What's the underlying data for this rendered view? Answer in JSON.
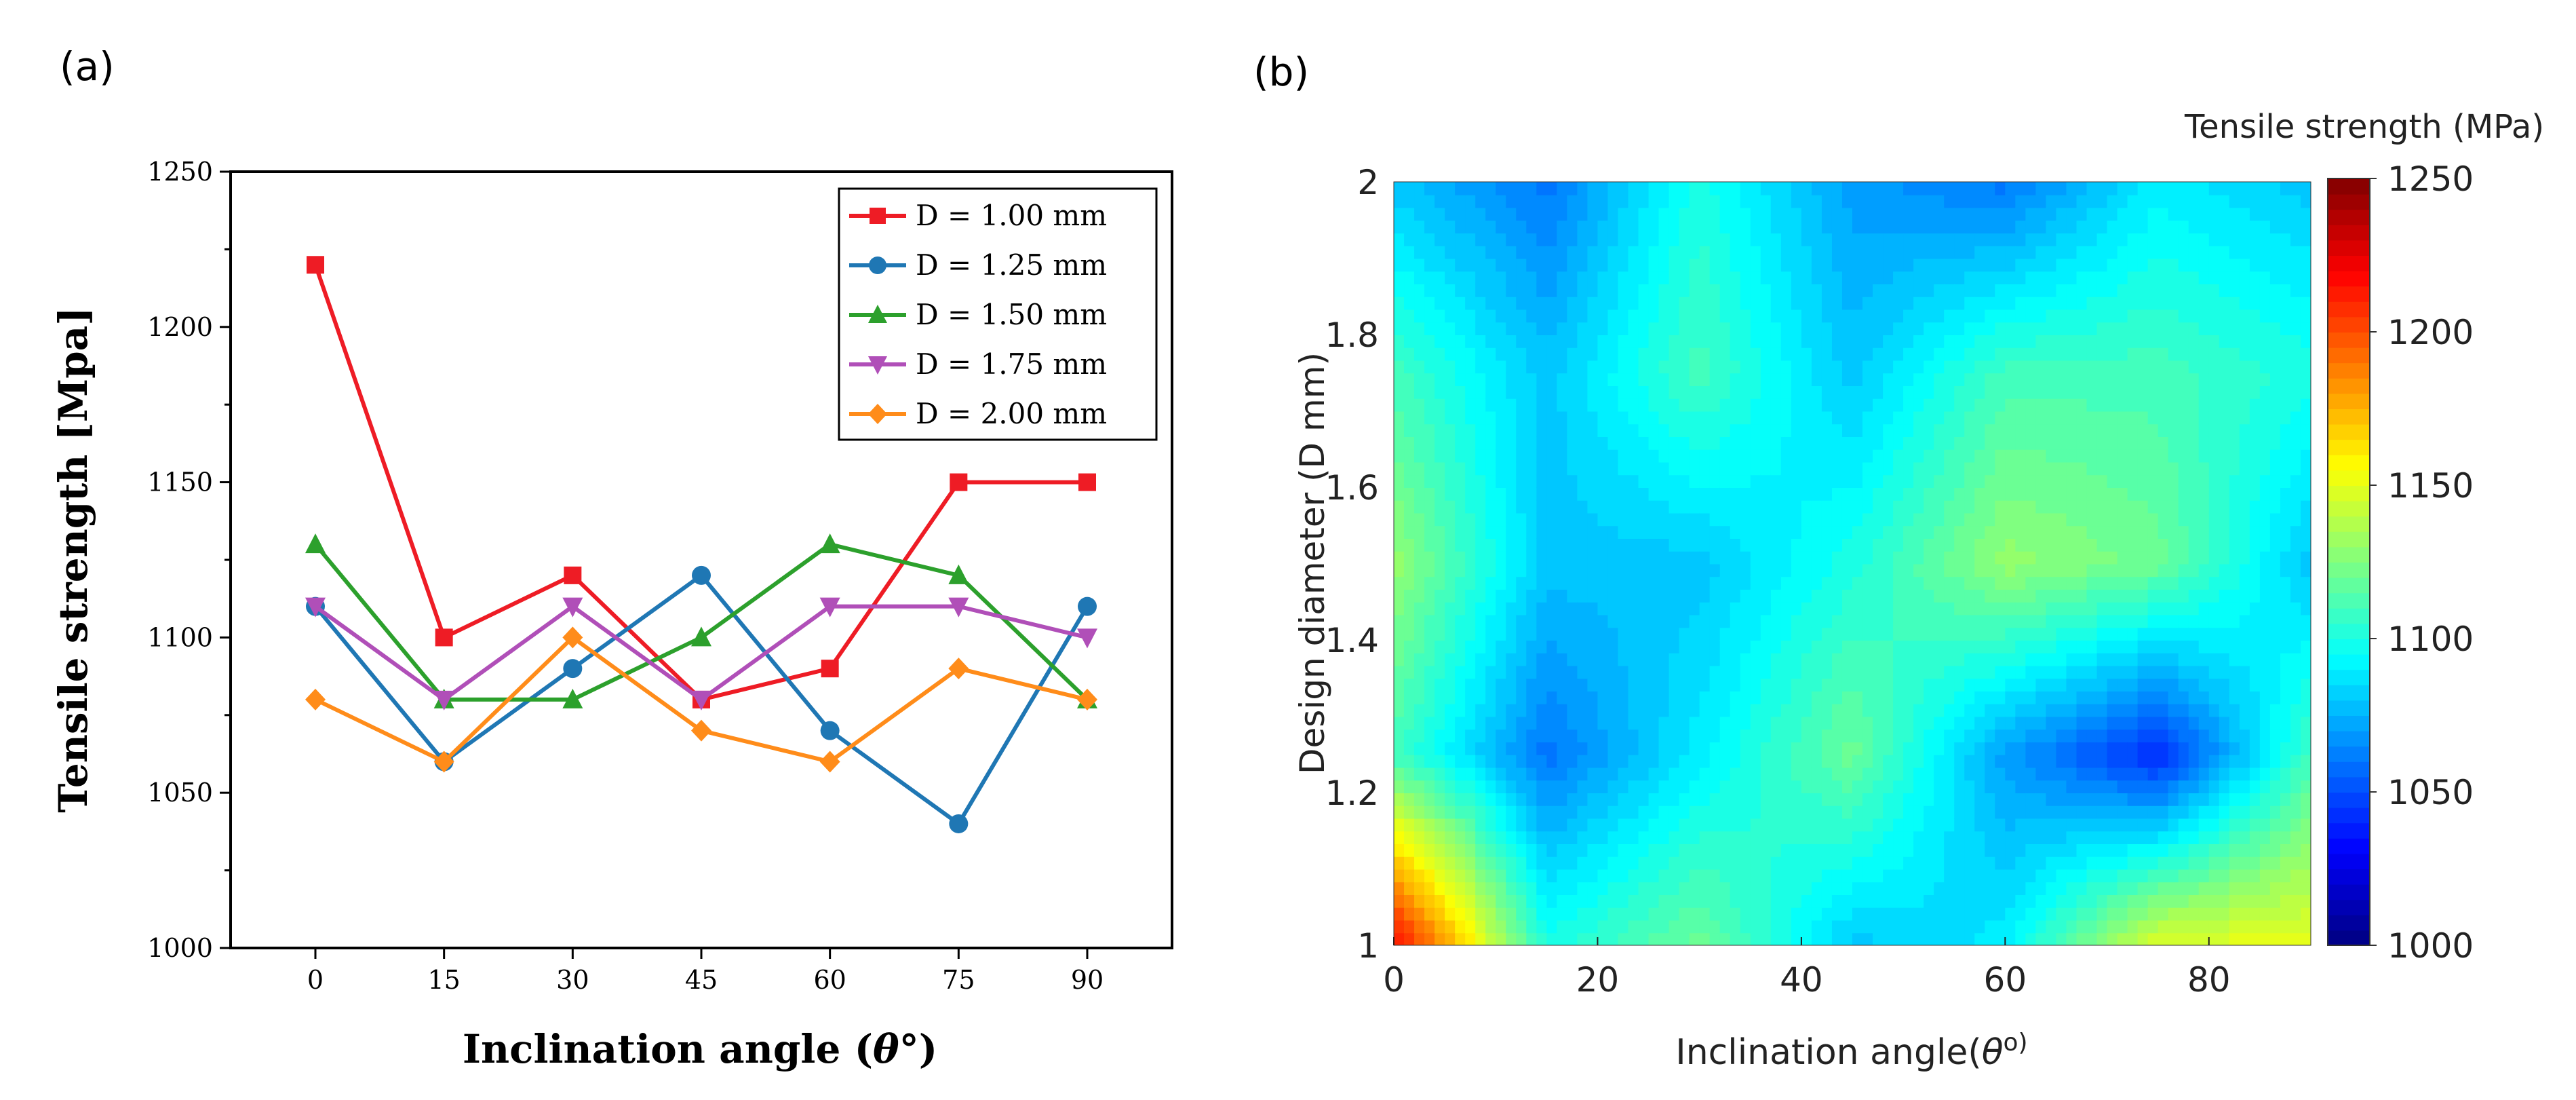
{
  "panels": {
    "a_label": "(a)",
    "b_label": "(b)"
  },
  "chart_data": [
    {
      "type": "line",
      "xlabel_main": "Inclination angle (",
      "xlabel_theta": "θ",
      "xlabel_tail": "°)",
      "ylabel": "Tensile strength [Mpa]",
      "x": [
        0,
        15,
        30,
        45,
        60,
        75,
        90
      ],
      "xticks": [
        "0",
        "15",
        "30",
        "45",
        "60",
        "75",
        "90"
      ],
      "yticks": [
        "1000",
        "1050",
        "1100",
        "1150",
        "1200",
        "1250"
      ],
      "ylim": [
        1000,
        1250
      ],
      "legend_position": "top-right",
      "series": [
        {
          "name": "D = 1.00 mm",
          "color": "#ee1c25",
          "marker": "square",
          "values": [
            1220,
            1100,
            1120,
            1080,
            1090,
            1150,
            1150
          ]
        },
        {
          "name": "D = 1.25 mm",
          "color": "#1f77b4",
          "marker": "circle",
          "values": [
            1110,
            1060,
            1090,
            1120,
            1070,
            1040,
            1110
          ]
        },
        {
          "name": "D = 1.50 mm",
          "color": "#2ca02c",
          "marker": "triangle-up",
          "values": [
            1130,
            1080,
            1080,
            1100,
            1130,
            1120,
            1080
          ]
        },
        {
          "name": "D = 1.75 mm",
          "color": "#b04fb8",
          "marker": "triangle-down",
          "values": [
            1110,
            1080,
            1110,
            1080,
            1110,
            1110,
            1100
          ]
        },
        {
          "name": "D = 2.00 mm",
          "color": "#ff8c1a",
          "marker": "diamond",
          "values": [
            1080,
            1060,
            1100,
            1070,
            1060,
            1090,
            1080
          ]
        }
      ]
    },
    {
      "type": "heatmap",
      "title": "Tensile strength (MPa)",
      "xlabel_main": "Inclination angle(",
      "xlabel_theta": "θ",
      "xlabel_tail": "o)",
      "ylabel": "Design diameter (D mm)",
      "xlim": [
        0,
        90
      ],
      "ylim": [
        1,
        2
      ],
      "xticks": [
        "0",
        "20",
        "40",
        "60",
        "80"
      ],
      "yticks": [
        "1",
        "1.2",
        "1.4",
        "1.6",
        "1.8",
        "2"
      ],
      "colorbar_range": [
        1000,
        1250
      ],
      "colorbar_ticks": [
        "1000",
        "1050",
        "1100",
        "1150",
        "1200",
        "1250"
      ],
      "x": [
        0,
        15,
        30,
        45,
        60,
        75,
        90
      ],
      "y": [
        1.0,
        1.25,
        1.5,
        1.75,
        2.0
      ],
      "z": [
        [
          1220,
          1100,
          1120,
          1080,
          1090,
          1150,
          1150
        ],
        [
          1110,
          1060,
          1090,
          1120,
          1070,
          1040,
          1110
        ],
        [
          1130,
          1080,
          1080,
          1100,
          1130,
          1120,
          1080
        ],
        [
          1110,
          1080,
          1110,
          1080,
          1110,
          1110,
          1100
        ],
        [
          1080,
          1060,
          1100,
          1070,
          1060,
          1090,
          1080
        ]
      ]
    }
  ]
}
